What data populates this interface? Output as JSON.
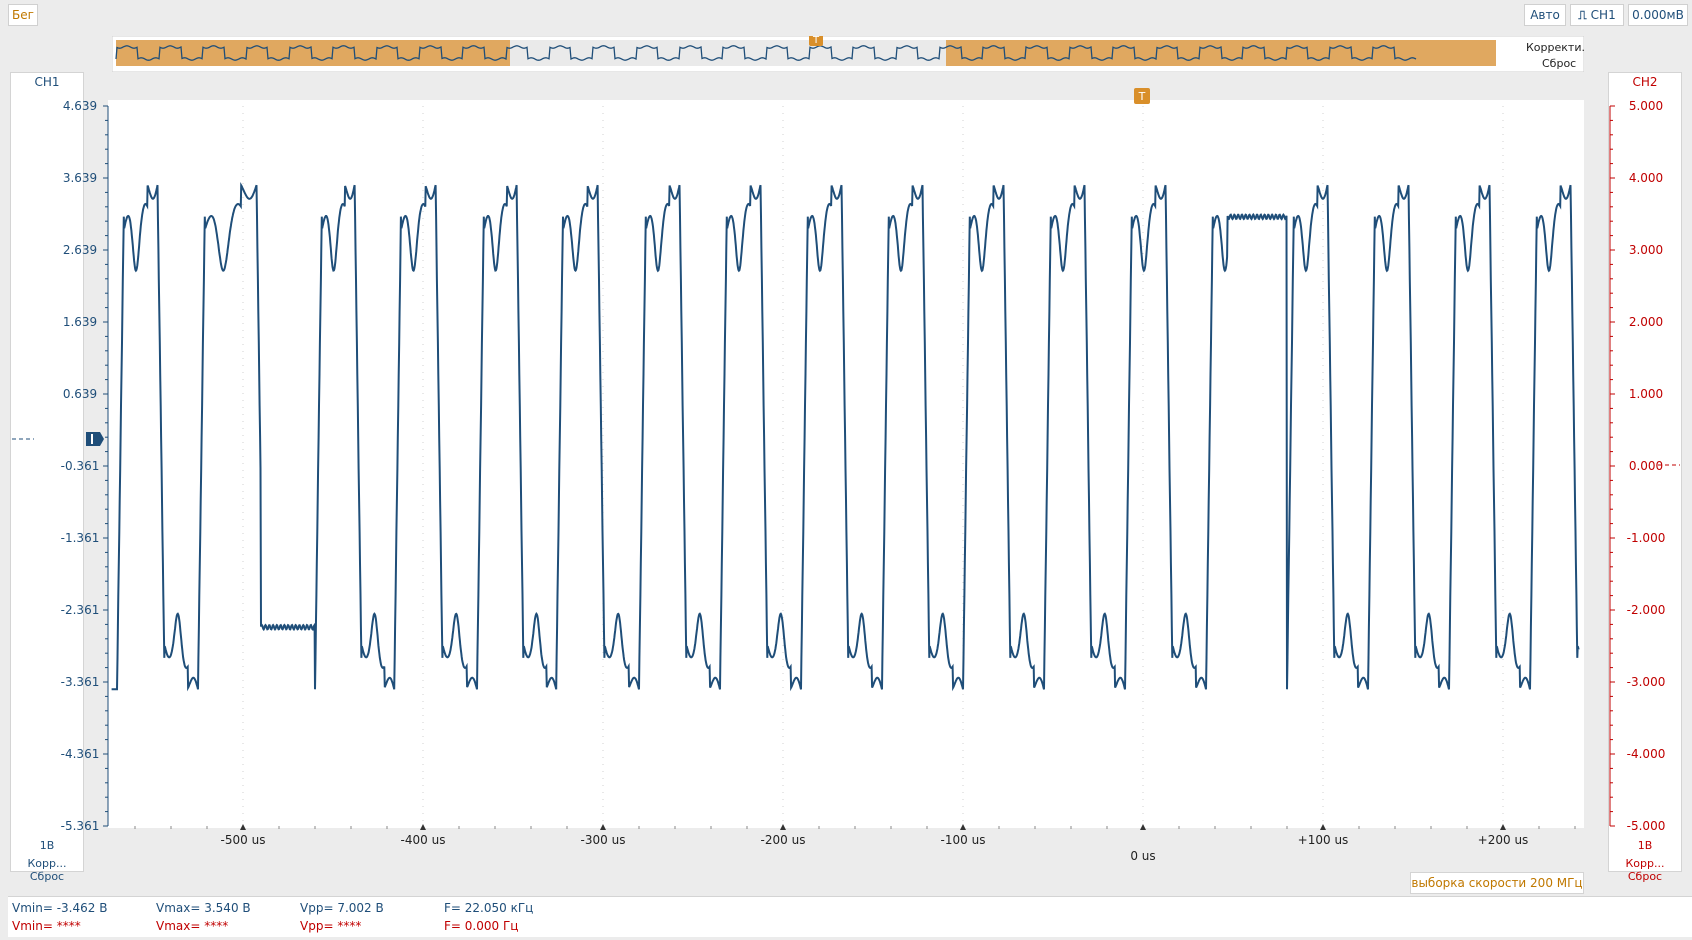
{
  "toolbar": {
    "run_label": "Бег",
    "auto_label": "Авто",
    "trigger_channel": "CH1",
    "trigger_level": "0.000мВ"
  },
  "overview": {
    "correct_label": "Корректи...",
    "reset_label": "Сброс",
    "trigger_marker": "T"
  },
  "ch1": {
    "name": "CH1",
    "scale": "1В",
    "correct_label": "Корр...",
    "reset_label": "Сброс",
    "ticks": [
      "4.639",
      "3.639",
      "2.639",
      "1.639",
      "0.639",
      "-0.361",
      "-1.361",
      "-2.361",
      "-3.361",
      "-4.361",
      "-5.361"
    ],
    "color": "#1f4e79"
  },
  "ch2": {
    "name": "CH2",
    "scale": "1В",
    "correct_label": "Корр...",
    "reset_label": "Сброс",
    "ticks": [
      "5.000",
      "4.000",
      "3.000",
      "2.000",
      "1.000",
      "0.000",
      "-1.000",
      "-2.000",
      "-3.000",
      "-4.000",
      "-5.000"
    ],
    "color": "#c00000"
  },
  "time_axis": {
    "labels": [
      "-500 us",
      "-400 us",
      "-300 us",
      "-200 us",
      "-100 us",
      "0 us",
      "+100 us",
      "+200 us"
    ],
    "values": [
      -500,
      -400,
      -300,
      -200,
      -100,
      0,
      100,
      200
    ]
  },
  "sample_rate": "выборка скорости 200 МГц",
  "measurements": {
    "ch1": {
      "vmin": "Vmin= -3.462 В",
      "vmax": "Vmax= 3.540 В",
      "vpp": "Vpp= 7.002 В",
      "freq": "F= 22.050 кГц"
    },
    "ch2": {
      "vmin": "Vmin= ****",
      "vmax": "Vmax= ****",
      "vpp": "Vpp= ****",
      "freq": "F= 0.000 Гц"
    }
  },
  "chart_data": {
    "type": "line",
    "xlabel": "",
    "ylabel": "",
    "xlim": [
      -575,
      245
    ],
    "ylim_ch1": [
      -5.361,
      4.639
    ],
    "ylim_ch2": [
      -5.0,
      5.0
    ],
    "trigger_time": 0,
    "series": [
      {
        "name": "CH1",
        "color": "#1f4e79",
        "waveform": "square-like with ringing",
        "vmin": -3.462,
        "vmax": 3.54,
        "frequency_khz": 22.05,
        "cycle_start_times_us": [
          -570,
          -525,
          -460,
          -416,
          -370,
          -326,
          -280,
          -235,
          -190,
          -145,
          -100,
          -55,
          -10,
          35,
          80,
          125,
          170,
          215
        ],
        "glitches": [
          {
            "start_us": -490,
            "end_us": -460,
            "level": -2.6
          },
          {
            "start_us": 47,
            "end_us": 80,
            "level": 3.1
          }
        ]
      }
    ]
  }
}
